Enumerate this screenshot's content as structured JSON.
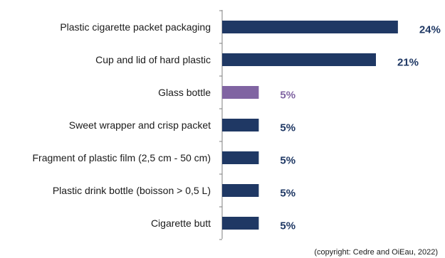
{
  "chart_data": {
    "type": "bar",
    "orientation": "horizontal",
    "categories": [
      "Plastic cigarette packet packaging",
      "Cup and lid of hard plastic",
      "Glass bottle",
      "Sweet wrapper and crisp packet",
      "Fragment of plastic film (2,5 cm - 50 cm)",
      "Plastic drink bottle (boisson > 0,5 L)",
      "Cigarette butt"
    ],
    "values": [
      24,
      21,
      5,
      5,
      5,
      5,
      5
    ],
    "value_labels": [
      "24%",
      "21%",
      "5%",
      "5%",
      "5%",
      "5%",
      "5%"
    ],
    "unit": "%",
    "xlim": [
      0,
      28
    ],
    "highlight_index": 2,
    "grid": false,
    "legend": "none"
  },
  "colors": {
    "bar": "#1f3864",
    "highlight": "#8064a2",
    "axis": "#7f7f7f"
  },
  "footer": {
    "credit": "(copyright: Cedre and OiEau, 2022)"
  }
}
